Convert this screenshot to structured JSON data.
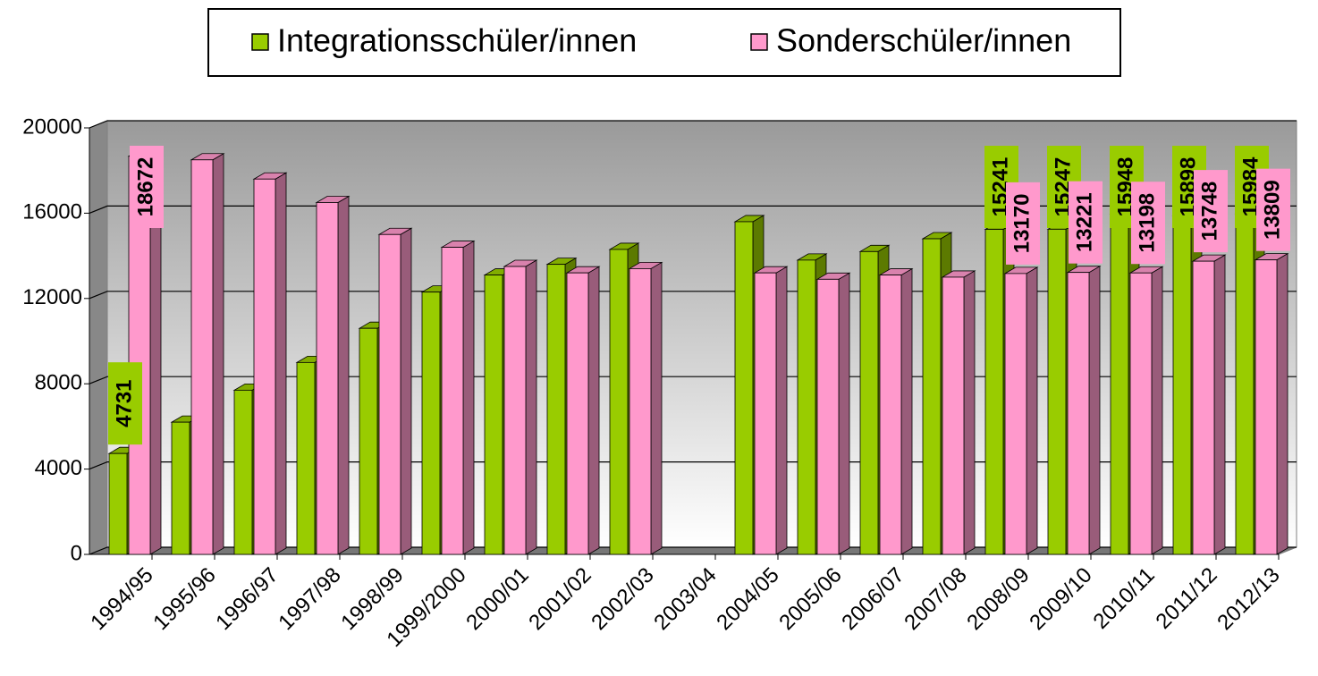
{
  "chart_data": {
    "type": "bar3d",
    "categories": [
      "1994/95",
      "1995/96",
      "1996/97",
      "1997/98",
      "1998/99",
      "1999/2000",
      "2000/01",
      "2001/02",
      "2002/03",
      "2003/04",
      "2004/05",
      "2005/06",
      "2006/07",
      "2007/08",
      "2008/09",
      "2009/10",
      "2010/11",
      "2011/12",
      "2012/13"
    ],
    "series": [
      {
        "name": "Integrationsschüler/innen",
        "color": "#99cc00",
        "values": [
          4731,
          6200,
          7700,
          9000,
          10600,
          12300,
          13100,
          13600,
          14300,
          null,
          15600,
          13800,
          14200,
          14800,
          15241,
          15247,
          15948,
          15898,
          15984
        ],
        "value_labels": [
          "4731",
          null,
          null,
          null,
          null,
          null,
          null,
          null,
          null,
          null,
          null,
          null,
          null,
          null,
          "15241",
          "15247",
          "15948",
          "15898",
          "15984"
        ]
      },
      {
        "name": "Sonderschüler/innen",
        "color": "#ff99cc",
        "values": [
          18672,
          18500,
          17600,
          16500,
          15000,
          14400,
          13500,
          13200,
          13400,
          null,
          13200,
          12900,
          13100,
          13000,
          13170,
          13221,
          13198,
          13748,
          13809
        ],
        "value_labels": [
          "18672",
          null,
          null,
          null,
          null,
          null,
          null,
          null,
          null,
          null,
          null,
          null,
          null,
          null,
          "13170",
          "13221",
          "13198",
          "13748",
          "13809"
        ]
      }
    ],
    "ylim": [
      0,
      20000
    ],
    "yticks": [
      0,
      4000,
      8000,
      12000,
      16000,
      20000
    ],
    "grid": true,
    "legend": "top"
  }
}
